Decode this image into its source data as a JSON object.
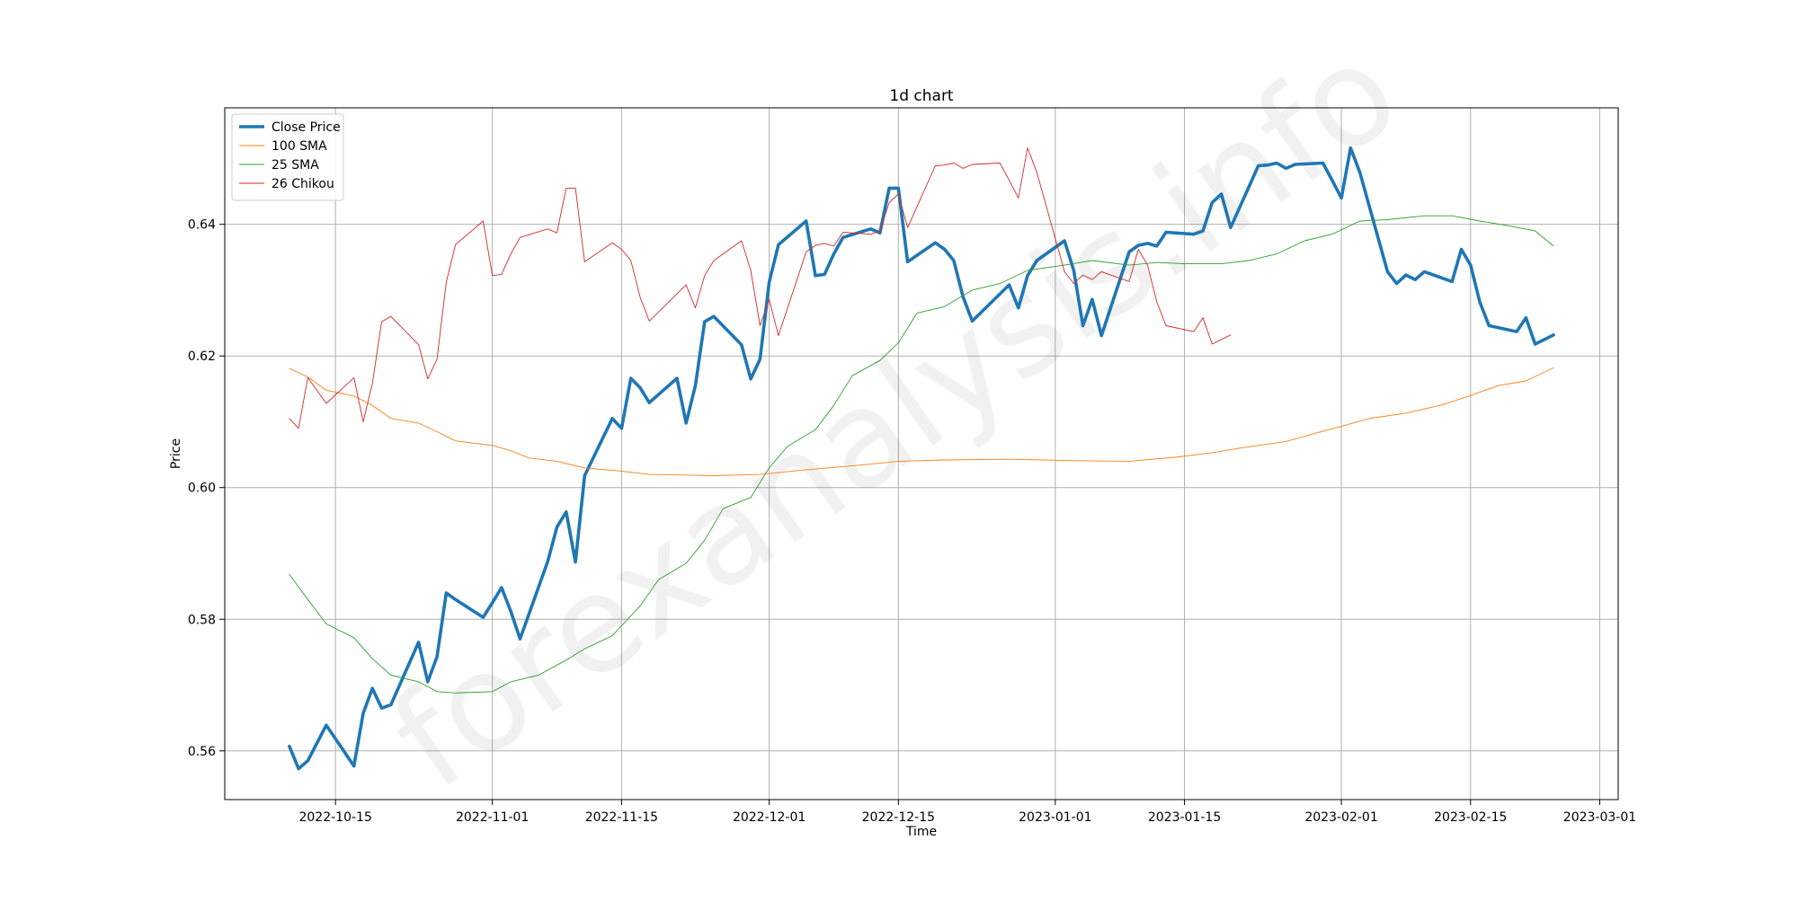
{
  "chart_data": {
    "type": "line",
    "title": "1d chart",
    "xlabel": "Time",
    "ylabel": "Price",
    "xlim": [
      "2022-10-03",
      "2023-03-03"
    ],
    "ylim": [
      0.5526,
      0.6577
    ],
    "x_ticks": [
      "2022-10-15",
      "2022-11-01",
      "2022-11-15",
      "2022-12-01",
      "2022-12-15",
      "2023-01-01",
      "2023-01-15",
      "2023-02-01",
      "2023-02-15",
      "2023-03-01"
    ],
    "y_ticks": [
      0.56,
      0.58,
      0.6,
      0.62,
      0.64
    ],
    "y_tick_labels": [
      "0.56",
      "0.58",
      "0.60",
      "0.62",
      "0.64"
    ],
    "grid": true,
    "legend_position": "top-left",
    "watermark": "forexanalysis.info",
    "series": [
      {
        "name": "Close Price",
        "color": "#1f77b4",
        "points": [
          [
            "2022-10-10",
            0.5607
          ],
          [
            "2022-10-11",
            0.5573
          ],
          [
            "2022-10-12",
            0.5585
          ],
          [
            "2022-10-14",
            0.5639
          ],
          [
            "2022-10-17",
            0.5577
          ],
          [
            "2022-10-18",
            0.5657
          ],
          [
            "2022-10-19",
            0.5695
          ],
          [
            "2022-10-20",
            0.5665
          ],
          [
            "2022-10-21",
            0.567
          ],
          [
            "2022-10-24",
            0.5765
          ],
          [
            "2022-10-25",
            0.5705
          ],
          [
            "2022-10-26",
            0.5743
          ],
          [
            "2022-10-27",
            0.584
          ],
          [
            "2022-10-28",
            0.583
          ],
          [
            "2022-10-31",
            0.5803
          ],
          [
            "2022-11-01",
            0.5825
          ],
          [
            "2022-11-02",
            0.5848
          ],
          [
            "2022-11-03",
            0.5812
          ],
          [
            "2022-11-04",
            0.577
          ],
          [
            "2022-11-07",
            0.5888
          ],
          [
            "2022-11-08",
            0.594
          ],
          [
            "2022-11-09",
            0.5963
          ],
          [
            "2022-11-10",
            0.5887
          ],
          [
            "2022-11-11",
            0.6018
          ],
          [
            "2022-11-14",
            0.6105
          ],
          [
            "2022-11-15",
            0.609
          ],
          [
            "2022-11-16",
            0.6166
          ],
          [
            "2022-11-17",
            0.6152
          ],
          [
            "2022-11-18",
            0.6129
          ],
          [
            "2022-11-21",
            0.6166
          ],
          [
            "2022-11-22",
            0.6098
          ],
          [
            "2022-11-23",
            0.6155
          ],
          [
            "2022-11-24",
            0.6252
          ],
          [
            "2022-11-25",
            0.626
          ],
          [
            "2022-11-28",
            0.6217
          ],
          [
            "2022-11-29",
            0.6165
          ],
          [
            "2022-11-30",
            0.6195
          ],
          [
            "2022-12-01",
            0.6312
          ],
          [
            "2022-12-02",
            0.6369
          ],
          [
            "2022-12-05",
            0.6405
          ],
          [
            "2022-12-06",
            0.6322
          ],
          [
            "2022-12-07",
            0.6324
          ],
          [
            "2022-12-08",
            0.6355
          ],
          [
            "2022-12-09",
            0.638
          ],
          [
            "2022-12-12",
            0.6393
          ],
          [
            "2022-12-13",
            0.6387
          ],
          [
            "2022-12-14",
            0.6455
          ],
          [
            "2022-12-15",
            0.6455
          ],
          [
            "2022-12-16",
            0.6343
          ],
          [
            "2022-12-19",
            0.6372
          ],
          [
            "2022-12-20",
            0.6362
          ],
          [
            "2022-12-21",
            0.6345
          ],
          [
            "2022-12-22",
            0.629
          ],
          [
            "2022-12-23",
            0.6253
          ],
          [
            "2022-12-27",
            0.6308
          ],
          [
            "2022-12-28",
            0.6273
          ],
          [
            "2022-12-29",
            0.6322
          ],
          [
            "2022-12-30",
            0.6345
          ],
          [
            "2023-01-02",
            0.6375
          ],
          [
            "2023-01-03",
            0.633
          ],
          [
            "2023-01-04",
            0.6246
          ],
          [
            "2023-01-05",
            0.6286
          ],
          [
            "2023-01-06",
            0.6231
          ],
          [
            "2023-01-09",
            0.6358
          ],
          [
            "2023-01-10",
            0.6368
          ],
          [
            "2023-01-11",
            0.6371
          ],
          [
            "2023-01-12",
            0.6367
          ],
          [
            "2023-01-13",
            0.6388
          ],
          [
            "2023-01-16",
            0.6385
          ],
          [
            "2023-01-17",
            0.639
          ],
          [
            "2023-01-18",
            0.6433
          ],
          [
            "2023-01-19",
            0.6446
          ],
          [
            "2023-01-20",
            0.6395
          ],
          [
            "2023-01-23",
            0.6489
          ],
          [
            "2023-01-24",
            0.649
          ],
          [
            "2023-01-25",
            0.6493
          ],
          [
            "2023-01-26",
            0.6485
          ],
          [
            "2023-01-27",
            0.6491
          ],
          [
            "2023-01-30",
            0.6493
          ],
          [
            "2023-01-31",
            0.6467
          ],
          [
            "2023-02-01",
            0.644
          ],
          [
            "2023-02-02",
            0.6516
          ],
          [
            "2023-02-03",
            0.6479
          ],
          [
            "2023-02-06",
            0.6328
          ],
          [
            "2023-02-07",
            0.631
          ],
          [
            "2023-02-08",
            0.6323
          ],
          [
            "2023-02-09",
            0.6316
          ],
          [
            "2023-02-10",
            0.6328
          ],
          [
            "2023-02-13",
            0.6313
          ],
          [
            "2023-02-14",
            0.6362
          ],
          [
            "2023-02-15",
            0.6338
          ],
          [
            "2023-02-16",
            0.6282
          ],
          [
            "2023-02-17",
            0.6246
          ],
          [
            "2023-02-20",
            0.6237
          ],
          [
            "2023-02-21",
            0.6258
          ],
          [
            "2023-02-22",
            0.6218
          ],
          [
            "2023-02-24",
            0.6232
          ]
        ]
      },
      {
        "name": "100 SMA",
        "color": "#ff7f0e",
        "points": [
          [
            "2022-10-10",
            0.6181
          ],
          [
            "2022-10-12",
            0.6168
          ],
          [
            "2022-10-14",
            0.6148
          ],
          [
            "2022-10-17",
            0.6139
          ],
          [
            "2022-10-19",
            0.6125
          ],
          [
            "2022-10-21",
            0.6105
          ],
          [
            "2022-10-24",
            0.6098
          ],
          [
            "2022-10-26",
            0.6085
          ],
          [
            "2022-10-28",
            0.6071
          ],
          [
            "2022-11-01",
            0.6064
          ],
          [
            "2022-11-03",
            0.6056
          ],
          [
            "2022-11-05",
            0.6045
          ],
          [
            "2022-11-08",
            0.604
          ],
          [
            "2022-11-11",
            0.603
          ],
          [
            "2022-11-15",
            0.6025
          ],
          [
            "2022-11-18",
            0.602
          ],
          [
            "2022-11-22",
            0.6019
          ],
          [
            "2022-11-25",
            0.6018
          ],
          [
            "2022-11-30",
            0.602
          ],
          [
            "2022-12-05",
            0.6027
          ],
          [
            "2022-12-10",
            0.6033
          ],
          [
            "2022-12-15",
            0.604
          ],
          [
            "2022-12-20",
            0.6042
          ],
          [
            "2022-12-27",
            0.6043
          ],
          [
            "2023-01-03",
            0.6041
          ],
          [
            "2023-01-09",
            0.604
          ],
          [
            "2023-01-14",
            0.6046
          ],
          [
            "2023-01-18",
            0.6053
          ],
          [
            "2023-01-21",
            0.606
          ],
          [
            "2023-01-26",
            0.607
          ],
          [
            "2023-01-29",
            0.6082
          ],
          [
            "2023-02-01",
            0.6093
          ],
          [
            "2023-02-04",
            0.6105
          ],
          [
            "2023-02-08",
            0.6113
          ],
          [
            "2023-02-12",
            0.6126
          ],
          [
            "2023-02-15",
            0.614
          ],
          [
            "2023-02-18",
            0.6155
          ],
          [
            "2023-02-21",
            0.6162
          ],
          [
            "2023-02-24",
            0.6182
          ]
        ]
      },
      {
        "name": "25 SMA",
        "color": "#2ca02c",
        "points": [
          [
            "2022-10-10",
            0.5868
          ],
          [
            "2022-10-12",
            0.583
          ],
          [
            "2022-10-14",
            0.5793
          ],
          [
            "2022-10-17",
            0.5772
          ],
          [
            "2022-10-19",
            0.574
          ],
          [
            "2022-10-21",
            0.5715
          ],
          [
            "2022-10-24",
            0.5705
          ],
          [
            "2022-10-26",
            0.569
          ],
          [
            "2022-10-28",
            0.5688
          ],
          [
            "2022-11-01",
            0.569
          ],
          [
            "2022-11-03",
            0.5705
          ],
          [
            "2022-11-06",
            0.5715
          ],
          [
            "2022-11-09",
            0.5738
          ],
          [
            "2022-11-11",
            0.5755
          ],
          [
            "2022-11-14",
            0.5775
          ],
          [
            "2022-11-17",
            0.582
          ],
          [
            "2022-11-19",
            0.586
          ],
          [
            "2022-11-22",
            0.5885
          ],
          [
            "2022-11-24",
            0.592
          ],
          [
            "2022-11-26",
            0.5968
          ],
          [
            "2022-11-29",
            0.5985
          ],
          [
            "2022-12-01",
            0.603
          ],
          [
            "2022-12-03",
            0.6063
          ],
          [
            "2022-12-06",
            0.6088
          ],
          [
            "2022-12-08",
            0.6125
          ],
          [
            "2022-12-10",
            0.617
          ],
          [
            "2022-12-13",
            0.6193
          ],
          [
            "2022-12-15",
            0.622
          ],
          [
            "2022-12-17",
            0.6265
          ],
          [
            "2022-12-20",
            0.6275
          ],
          [
            "2022-12-23",
            0.63
          ],
          [
            "2022-12-26",
            0.631
          ],
          [
            "2022-12-29",
            0.633
          ],
          [
            "2023-01-02",
            0.6338
          ],
          [
            "2023-01-05",
            0.6345
          ],
          [
            "2023-01-09",
            0.6338
          ],
          [
            "2023-01-12",
            0.6342
          ],
          [
            "2023-01-15",
            0.634
          ],
          [
            "2023-01-19",
            0.634
          ],
          [
            "2023-01-22",
            0.6345
          ],
          [
            "2023-01-25",
            0.6355
          ],
          [
            "2023-01-28",
            0.6375
          ],
          [
            "2023-01-31",
            0.6385
          ],
          [
            "2023-02-03",
            0.6405
          ],
          [
            "2023-02-06",
            0.6407
          ],
          [
            "2023-02-10",
            0.6413
          ],
          [
            "2023-02-13",
            0.6413
          ],
          [
            "2023-02-16",
            0.6405
          ],
          [
            "2023-02-19",
            0.6398
          ],
          [
            "2023-02-22",
            0.639
          ],
          [
            "2023-02-24",
            0.6367
          ]
        ]
      },
      {
        "name": "26 Chikou",
        "color": "#d62728",
        "points": [
          [
            "2022-10-10",
            0.6105
          ],
          [
            "2022-10-11",
            0.609
          ],
          [
            "2022-10-12",
            0.6167
          ],
          [
            "2022-10-14",
            0.6128
          ],
          [
            "2022-10-17",
            0.6167
          ],
          [
            "2022-10-18",
            0.61
          ],
          [
            "2022-10-19",
            0.6158
          ],
          [
            "2022-10-20",
            0.6252
          ],
          [
            "2022-10-21",
            0.626
          ],
          [
            "2022-10-24",
            0.6217
          ],
          [
            "2022-10-25",
            0.6165
          ],
          [
            "2022-10-26",
            0.6195
          ],
          [
            "2022-10-27",
            0.6312
          ],
          [
            "2022-10-28",
            0.6369
          ],
          [
            "2022-10-31",
            0.6405
          ],
          [
            "2022-11-01",
            0.6322
          ],
          [
            "2022-11-02",
            0.6324
          ],
          [
            "2022-11-03",
            0.6355
          ],
          [
            "2022-11-04",
            0.638
          ],
          [
            "2022-11-07",
            0.6393
          ],
          [
            "2022-11-08",
            0.6387
          ],
          [
            "2022-11-09",
            0.6455
          ],
          [
            "2022-11-10",
            0.6455
          ],
          [
            "2022-11-11",
            0.6343
          ],
          [
            "2022-11-14",
            0.6372
          ],
          [
            "2022-11-15",
            0.6362
          ],
          [
            "2022-11-16",
            0.6345
          ],
          [
            "2022-11-17",
            0.629
          ],
          [
            "2022-11-18",
            0.6253
          ],
          [
            "2022-11-22",
            0.6308
          ],
          [
            "2022-11-23",
            0.6273
          ],
          [
            "2022-11-24",
            0.6322
          ],
          [
            "2022-11-25",
            0.6345
          ],
          [
            "2022-11-28",
            0.6375
          ],
          [
            "2022-11-29",
            0.633
          ],
          [
            "2022-11-30",
            0.6246
          ],
          [
            "2022-12-01",
            0.6286
          ],
          [
            "2022-12-02",
            0.6231
          ],
          [
            "2022-12-05",
            0.6358
          ],
          [
            "2022-12-06",
            0.6368
          ],
          [
            "2022-12-07",
            0.6371
          ],
          [
            "2022-12-08",
            0.6367
          ],
          [
            "2022-12-09",
            0.6388
          ],
          [
            "2022-12-12",
            0.6385
          ],
          [
            "2022-12-13",
            0.639
          ],
          [
            "2022-12-14",
            0.6433
          ],
          [
            "2022-12-15",
            0.6446
          ],
          [
            "2022-12-16",
            0.6395
          ],
          [
            "2022-12-19",
            0.6489
          ],
          [
            "2022-12-20",
            0.649
          ],
          [
            "2022-12-21",
            0.6493
          ],
          [
            "2022-12-22",
            0.6485
          ],
          [
            "2022-12-23",
            0.6491
          ],
          [
            "2022-12-26",
            0.6493
          ],
          [
            "2022-12-27",
            0.6467
          ],
          [
            "2022-12-28",
            0.644
          ],
          [
            "2022-12-29",
            0.6516
          ],
          [
            "2022-12-30",
            0.6479
          ],
          [
            "2023-01-02",
            0.6328
          ],
          [
            "2023-01-03",
            0.631
          ],
          [
            "2023-01-04",
            0.6323
          ],
          [
            "2023-01-05",
            0.6316
          ],
          [
            "2023-01-06",
            0.6328
          ],
          [
            "2023-01-09",
            0.6313
          ],
          [
            "2023-01-10",
            0.6362
          ],
          [
            "2023-01-11",
            0.6338
          ],
          [
            "2023-01-12",
            0.6282
          ],
          [
            "2023-01-13",
            0.6246
          ],
          [
            "2023-01-16",
            0.6237
          ],
          [
            "2023-01-17",
            0.6258
          ],
          [
            "2023-01-18",
            0.6218
          ],
          [
            "2023-01-20",
            0.6232
          ]
        ]
      }
    ]
  }
}
